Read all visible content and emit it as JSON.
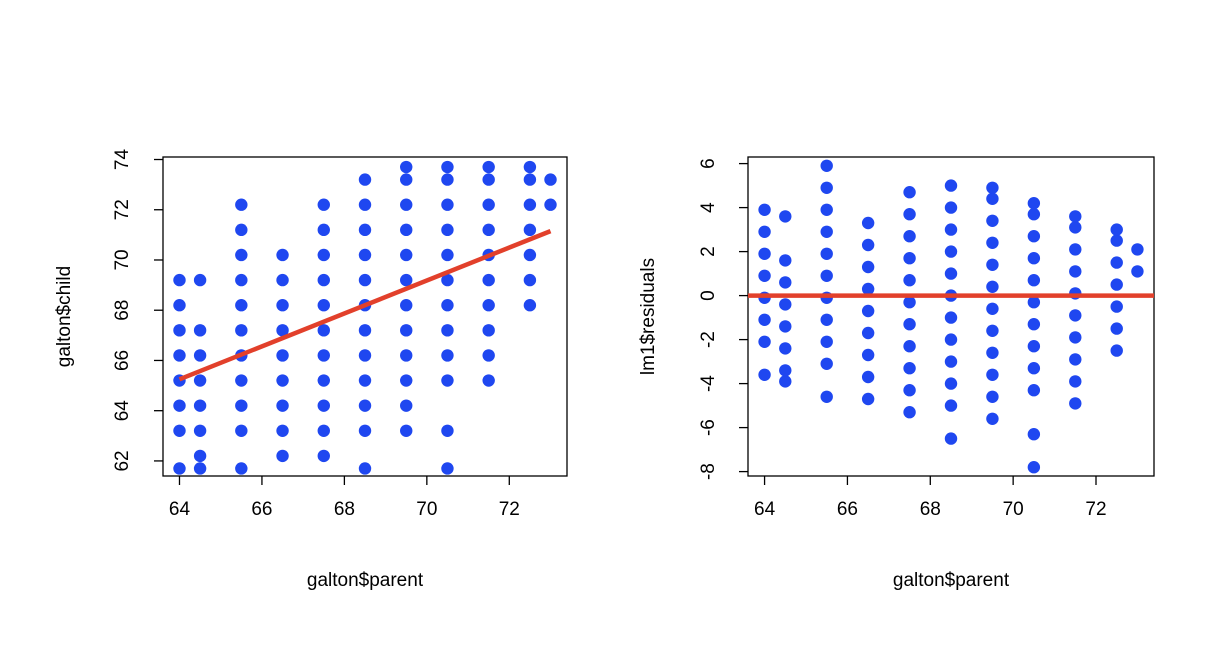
{
  "colors": {
    "points": "#1f47f0",
    "line": "#e2402b",
    "axis": "#000000"
  },
  "chart_data": [
    {
      "type": "scatter",
      "xlabel": "galton$parent",
      "ylabel": "galton$child",
      "xlim": [
        63.6,
        73.4
      ],
      "ylim": [
        61.4,
        74.1
      ],
      "xticks": [
        64,
        66,
        68,
        70,
        72
      ],
      "yticks": [
        62,
        64,
        66,
        68,
        70,
        72,
        74
      ],
      "grid": false,
      "points": [
        {
          "x": 64,
          "y": 61.7
        },
        {
          "x": 64,
          "y": 63.2
        },
        {
          "x": 64,
          "y": 64.2
        },
        {
          "x": 64,
          "y": 65.2
        },
        {
          "x": 64,
          "y": 66.2
        },
        {
          "x": 64,
          "y": 67.2
        },
        {
          "x": 64,
          "y": 68.2
        },
        {
          "x": 64,
          "y": 69.2
        },
        {
          "x": 64.5,
          "y": 61.7
        },
        {
          "x": 64.5,
          "y": 62.2
        },
        {
          "x": 64.5,
          "y": 63.2
        },
        {
          "x": 64.5,
          "y": 64.2
        },
        {
          "x": 64.5,
          "y": 65.2
        },
        {
          "x": 64.5,
          "y": 66.2
        },
        {
          "x": 64.5,
          "y": 67.2
        },
        {
          "x": 64.5,
          "y": 69.2
        },
        {
          "x": 65.5,
          "y": 61.7
        },
        {
          "x": 65.5,
          "y": 63.2
        },
        {
          "x": 65.5,
          "y": 64.2
        },
        {
          "x": 65.5,
          "y": 65.2
        },
        {
          "x": 65.5,
          "y": 66.2
        },
        {
          "x": 65.5,
          "y": 67.2
        },
        {
          "x": 65.5,
          "y": 68.2
        },
        {
          "x": 65.5,
          "y": 69.2
        },
        {
          "x": 65.5,
          "y": 70.2
        },
        {
          "x": 65.5,
          "y": 71.2
        },
        {
          "x": 65.5,
          "y": 72.2
        },
        {
          "x": 66.5,
          "y": 62.2
        },
        {
          "x": 66.5,
          "y": 63.2
        },
        {
          "x": 66.5,
          "y": 64.2
        },
        {
          "x": 66.5,
          "y": 65.2
        },
        {
          "x": 66.5,
          "y": 66.2
        },
        {
          "x": 66.5,
          "y": 67.2
        },
        {
          "x": 66.5,
          "y": 68.2
        },
        {
          "x": 66.5,
          "y": 69.2
        },
        {
          "x": 66.5,
          "y": 70.2
        },
        {
          "x": 67.5,
          "y": 62.2
        },
        {
          "x": 67.5,
          "y": 63.2
        },
        {
          "x": 67.5,
          "y": 64.2
        },
        {
          "x": 67.5,
          "y": 65.2
        },
        {
          "x": 67.5,
          "y": 66.2
        },
        {
          "x": 67.5,
          "y": 67.2
        },
        {
          "x": 67.5,
          "y": 68.2
        },
        {
          "x": 67.5,
          "y": 69.2
        },
        {
          "x": 67.5,
          "y": 70.2
        },
        {
          "x": 67.5,
          "y": 71.2
        },
        {
          "x": 67.5,
          "y": 72.2
        },
        {
          "x": 68.5,
          "y": 61.7
        },
        {
          "x": 68.5,
          "y": 63.2
        },
        {
          "x": 68.5,
          "y": 64.2
        },
        {
          "x": 68.5,
          "y": 65.2
        },
        {
          "x": 68.5,
          "y": 66.2
        },
        {
          "x": 68.5,
          "y": 67.2
        },
        {
          "x": 68.5,
          "y": 68.2
        },
        {
          "x": 68.5,
          "y": 69.2
        },
        {
          "x": 68.5,
          "y": 70.2
        },
        {
          "x": 68.5,
          "y": 71.2
        },
        {
          "x": 68.5,
          "y": 72.2
        },
        {
          "x": 68.5,
          "y": 73.2
        },
        {
          "x": 69.5,
          "y": 63.2
        },
        {
          "x": 69.5,
          "y": 64.2
        },
        {
          "x": 69.5,
          "y": 65.2
        },
        {
          "x": 69.5,
          "y": 66.2
        },
        {
          "x": 69.5,
          "y": 67.2
        },
        {
          "x": 69.5,
          "y": 68.2
        },
        {
          "x": 69.5,
          "y": 69.2
        },
        {
          "x": 69.5,
          "y": 70.2
        },
        {
          "x": 69.5,
          "y": 71.2
        },
        {
          "x": 69.5,
          "y": 72.2
        },
        {
          "x": 69.5,
          "y": 73.2
        },
        {
          "x": 69.5,
          "y": 73.7
        },
        {
          "x": 70.5,
          "y": 61.7
        },
        {
          "x": 70.5,
          "y": 63.2
        },
        {
          "x": 70.5,
          "y": 65.2
        },
        {
          "x": 70.5,
          "y": 66.2
        },
        {
          "x": 70.5,
          "y": 67.2
        },
        {
          "x": 70.5,
          "y": 68.2
        },
        {
          "x": 70.5,
          "y": 69.2
        },
        {
          "x": 70.5,
          "y": 70.2
        },
        {
          "x": 70.5,
          "y": 71.2
        },
        {
          "x": 70.5,
          "y": 72.2
        },
        {
          "x": 70.5,
          "y": 73.2
        },
        {
          "x": 70.5,
          "y": 73.7
        },
        {
          "x": 71.5,
          "y": 65.2
        },
        {
          "x": 71.5,
          "y": 66.2
        },
        {
          "x": 71.5,
          "y": 67.2
        },
        {
          "x": 71.5,
          "y": 68.2
        },
        {
          "x": 71.5,
          "y": 69.2
        },
        {
          "x": 71.5,
          "y": 70.2
        },
        {
          "x": 71.5,
          "y": 71.2
        },
        {
          "x": 71.5,
          "y": 72.2
        },
        {
          "x": 71.5,
          "y": 73.2
        },
        {
          "x": 71.5,
          "y": 73.7
        },
        {
          "x": 72.5,
          "y": 68.2
        },
        {
          "x": 72.5,
          "y": 69.2
        },
        {
          "x": 72.5,
          "y": 70.2
        },
        {
          "x": 72.5,
          "y": 71.2
        },
        {
          "x": 72.5,
          "y": 72.2
        },
        {
          "x": 72.5,
          "y": 73.2
        },
        {
          "x": 72.5,
          "y": 73.7
        },
        {
          "x": 73,
          "y": 72.2
        },
        {
          "x": 73,
          "y": 73.2
        }
      ],
      "line": {
        "x": [
          64,
          73
        ],
        "y": [
          65.25,
          71.15
        ]
      }
    },
    {
      "type": "scatter",
      "xlabel": "galton$parent",
      "ylabel": "lm1$residuals",
      "xlim": [
        63.6,
        73.4
      ],
      "ylim": [
        -8.2,
        6.3
      ],
      "xticks": [
        64,
        66,
        68,
        70,
        72
      ],
      "yticks": [
        -8,
        -6,
        -4,
        -2,
        0,
        2,
        4,
        6
      ],
      "grid": false,
      "points": [
        {
          "x": 64,
          "y": -3.6
        },
        {
          "x": 64,
          "y": -2.1
        },
        {
          "x": 64,
          "y": -1.1
        },
        {
          "x": 64,
          "y": -0.1
        },
        {
          "x": 64,
          "y": 0.9
        },
        {
          "x": 64,
          "y": 1.9
        },
        {
          "x": 64,
          "y": 2.9
        },
        {
          "x": 64,
          "y": 3.9
        },
        {
          "x": 64.5,
          "y": -3.9
        },
        {
          "x": 64.5,
          "y": -3.4
        },
        {
          "x": 64.5,
          "y": -2.4
        },
        {
          "x": 64.5,
          "y": -1.4
        },
        {
          "x": 64.5,
          "y": -0.4
        },
        {
          "x": 64.5,
          "y": 0.6
        },
        {
          "x": 64.5,
          "y": 1.6
        },
        {
          "x": 64.5,
          "y": 3.6
        },
        {
          "x": 65.5,
          "y": -4.6
        },
        {
          "x": 65.5,
          "y": -3.1
        },
        {
          "x": 65.5,
          "y": -2.1
        },
        {
          "x": 65.5,
          "y": -1.1
        },
        {
          "x": 65.5,
          "y": -0.1
        },
        {
          "x": 65.5,
          "y": 0.9
        },
        {
          "x": 65.5,
          "y": 1.9
        },
        {
          "x": 65.5,
          "y": 2.9
        },
        {
          "x": 65.5,
          "y": 3.9
        },
        {
          "x": 65.5,
          "y": 4.9
        },
        {
          "x": 65.5,
          "y": 5.9
        },
        {
          "x": 66.5,
          "y": -4.7
        },
        {
          "x": 66.5,
          "y": -3.7
        },
        {
          "x": 66.5,
          "y": -2.7
        },
        {
          "x": 66.5,
          "y": -1.7
        },
        {
          "x": 66.5,
          "y": -0.7
        },
        {
          "x": 66.5,
          "y": 0.3
        },
        {
          "x": 66.5,
          "y": 1.3
        },
        {
          "x": 66.5,
          "y": 2.3
        },
        {
          "x": 66.5,
          "y": 3.3
        },
        {
          "x": 67.5,
          "y": -5.3
        },
        {
          "x": 67.5,
          "y": -4.3
        },
        {
          "x": 67.5,
          "y": -3.3
        },
        {
          "x": 67.5,
          "y": -2.3
        },
        {
          "x": 67.5,
          "y": -1.3
        },
        {
          "x": 67.5,
          "y": -0.3
        },
        {
          "x": 67.5,
          "y": 0.7
        },
        {
          "x": 67.5,
          "y": 1.7
        },
        {
          "x": 67.5,
          "y": 2.7
        },
        {
          "x": 67.5,
          "y": 3.7
        },
        {
          "x": 67.5,
          "y": 4.7
        },
        {
          "x": 68.5,
          "y": -6.5
        },
        {
          "x": 68.5,
          "y": -5.0
        },
        {
          "x": 68.5,
          "y": -4.0
        },
        {
          "x": 68.5,
          "y": -3.0
        },
        {
          "x": 68.5,
          "y": -2.0
        },
        {
          "x": 68.5,
          "y": -1.0
        },
        {
          "x": 68.5,
          "y": 0.0
        },
        {
          "x": 68.5,
          "y": 1.0
        },
        {
          "x": 68.5,
          "y": 2.0
        },
        {
          "x": 68.5,
          "y": 3.0
        },
        {
          "x": 68.5,
          "y": 4.0
        },
        {
          "x": 68.5,
          "y": 5.0
        },
        {
          "x": 69.5,
          "y": -5.6
        },
        {
          "x": 69.5,
          "y": -4.6
        },
        {
          "x": 69.5,
          "y": -3.6
        },
        {
          "x": 69.5,
          "y": -2.6
        },
        {
          "x": 69.5,
          "y": -1.6
        },
        {
          "x": 69.5,
          "y": -0.6
        },
        {
          "x": 69.5,
          "y": 0.4
        },
        {
          "x": 69.5,
          "y": 1.4
        },
        {
          "x": 69.5,
          "y": 2.4
        },
        {
          "x": 69.5,
          "y": 3.4
        },
        {
          "x": 69.5,
          "y": 4.4
        },
        {
          "x": 69.5,
          "y": 4.9
        },
        {
          "x": 70.5,
          "y": -7.8
        },
        {
          "x": 70.5,
          "y": -6.3
        },
        {
          "x": 70.5,
          "y": -4.3
        },
        {
          "x": 70.5,
          "y": -3.3
        },
        {
          "x": 70.5,
          "y": -2.3
        },
        {
          "x": 70.5,
          "y": -1.3
        },
        {
          "x": 70.5,
          "y": -0.3
        },
        {
          "x": 70.5,
          "y": 0.7
        },
        {
          "x": 70.5,
          "y": 1.7
        },
        {
          "x": 70.5,
          "y": 2.7
        },
        {
          "x": 70.5,
          "y": 3.7
        },
        {
          "x": 70.5,
          "y": 4.2
        },
        {
          "x": 71.5,
          "y": -4.9
        },
        {
          "x": 71.5,
          "y": -3.9
        },
        {
          "x": 71.5,
          "y": -2.9
        },
        {
          "x": 71.5,
          "y": -1.9
        },
        {
          "x": 71.5,
          "y": -0.9
        },
        {
          "x": 71.5,
          "y": 0.1
        },
        {
          "x": 71.5,
          "y": 1.1
        },
        {
          "x": 71.5,
          "y": 2.1
        },
        {
          "x": 71.5,
          "y": 3.1
        },
        {
          "x": 71.5,
          "y": 3.6
        },
        {
          "x": 72.5,
          "y": -2.5
        },
        {
          "x": 72.5,
          "y": -1.5
        },
        {
          "x": 72.5,
          "y": -0.5
        },
        {
          "x": 72.5,
          "y": 0.5
        },
        {
          "x": 72.5,
          "y": 1.5
        },
        {
          "x": 72.5,
          "y": 2.5
        },
        {
          "x": 72.5,
          "y": 3.0
        },
        {
          "x": 73,
          "y": 1.1
        },
        {
          "x": 73,
          "y": 2.1
        }
      ],
      "line": {
        "x": [
          63.6,
          73.4
        ],
        "y": [
          0,
          0
        ]
      }
    }
  ]
}
